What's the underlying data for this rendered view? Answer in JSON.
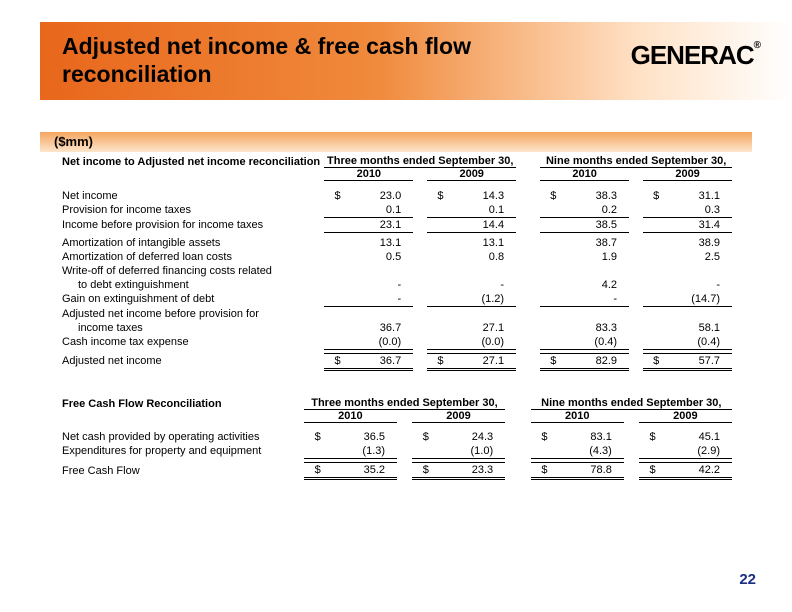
{
  "header": {
    "title": "Adjusted net income & free cash flow reconciliation",
    "logo_text": "GENERAC",
    "logo_mark": "®"
  },
  "unit_label": "($mm)",
  "page_number": "22",
  "period_headers": {
    "three_months": "Three months ended September 30,",
    "nine_months": "Nine months ended September 30,",
    "y2010": "2010",
    "y2009": "2009"
  },
  "table1": {
    "title": "Net income to Adjusted net income reconciliation",
    "rows": [
      {
        "label": "Net income",
        "d": "$",
        "v": [
          "23.0",
          "14.3",
          "38.3",
          "31.1"
        ],
        "cls": ""
      },
      {
        "label": "Provision for income taxes",
        "d": "",
        "v": [
          "0.1",
          "0.1",
          "0.2",
          "0.3"
        ],
        "cls": "ul-thin"
      },
      {
        "label": "Income before provision for income taxes",
        "d": "",
        "v": [
          "23.1",
          "14.4",
          "38.5",
          "31.4"
        ],
        "cls": "ul-med"
      }
    ],
    "rows2": [
      {
        "label": "Amortization of intangible assets",
        "d": "",
        "v": [
          "13.1",
          "13.1",
          "38.7",
          "38.9"
        ],
        "cls": ""
      },
      {
        "label": "Amortization of deferred loan costs",
        "d": "",
        "v": [
          "0.5",
          "0.8",
          "1.9",
          "2.5"
        ],
        "cls": ""
      },
      {
        "label": "Write-off of deferred financing costs related",
        "d": "",
        "v": [
          "",
          "",
          "",
          ""
        ],
        "cls": "nob"
      },
      {
        "label": "to debt extinguishment",
        "d": "",
        "v": [
          "-",
          "-",
          "4.2",
          "-"
        ],
        "cls": "",
        "indent": true
      },
      {
        "label": "Gain on extinguishment of debt",
        "d": "",
        "v": [
          "-",
          "(1.2)",
          "-",
          "(14.7)"
        ],
        "cls": "ul-thin"
      },
      {
        "label": "Adjusted net income before provision for",
        "d": "",
        "v": [
          "",
          "",
          "",
          ""
        ],
        "cls": "nob"
      },
      {
        "label": "income taxes",
        "d": "",
        "v": [
          "36.7",
          "27.1",
          "83.3",
          "58.1"
        ],
        "cls": "",
        "indent": true
      },
      {
        "label": "Cash income tax expense",
        "d": "",
        "v": [
          "(0.0)",
          "(0.0)",
          "(0.4)",
          "(0.4)"
        ],
        "cls": "ul-thin"
      }
    ],
    "total": {
      "label": "Adjusted net income",
      "d": "$",
      "v": [
        "36.7",
        "27.1",
        "82.9",
        "57.7"
      ]
    }
  },
  "table2": {
    "title": "Free Cash Flow Reconciliation",
    "rows": [
      {
        "label": "Net cash provided by operating activities",
        "d": "$",
        "v": [
          "36.5",
          "24.3",
          "83.1",
          "45.1"
        ],
        "cls": ""
      },
      {
        "label": "Expenditures for property and equipment",
        "d": "",
        "v": [
          "(1.3)",
          "(1.0)",
          "(4.3)",
          "(2.9)"
        ],
        "cls": "ul-thin"
      }
    ],
    "total": {
      "label": "Free Cash Flow",
      "d": "$",
      "v": [
        "35.2",
        "23.3",
        "78.8",
        "42.2"
      ]
    }
  }
}
